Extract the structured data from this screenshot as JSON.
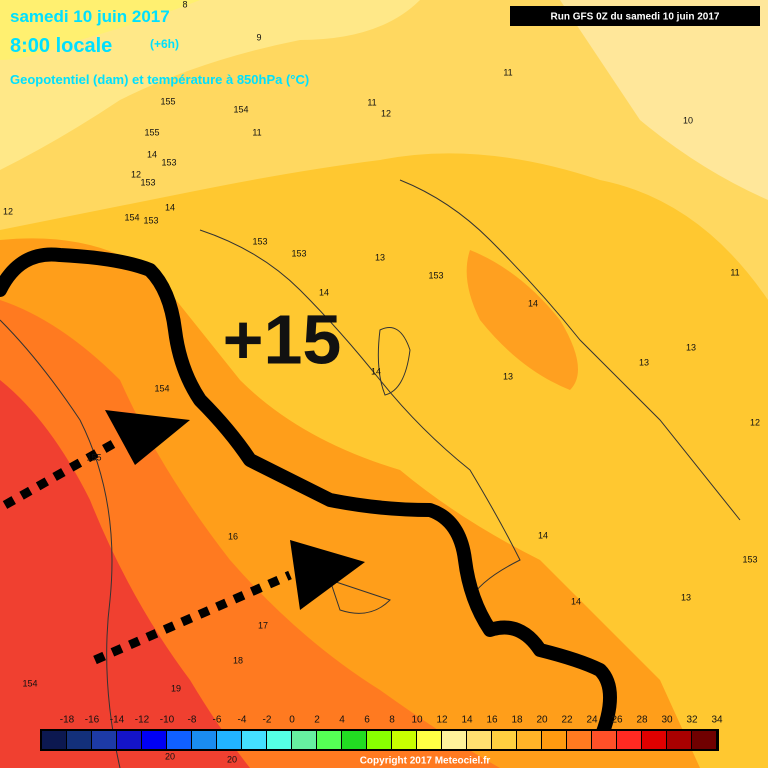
{
  "header": {
    "date": "samedi 10 juin 2017",
    "time": "8:00 locale",
    "offset": "(+6h)",
    "field": "Geopotentiel (dam) et température à 850hPa (°C)",
    "run": "Run GFS 0Z du samedi 10 juin 2017"
  },
  "annotation": "+15",
  "contour_labels": [
    "8",
    "9",
    "155",
    "154",
    "155",
    "11",
    "14",
    "153",
    "12",
    "153",
    "12",
    "154",
    "14",
    "153",
    "153",
    "153",
    "13",
    "14",
    "153",
    "14",
    "14",
    "154",
    "155",
    "16",
    "14",
    "14",
    "17",
    "18",
    "19",
    "154",
    "13",
    "153",
    "13",
    "12",
    "11",
    "10",
    "11",
    "12",
    "11",
    "13",
    "13",
    "20",
    "20"
  ],
  "colorbar": {
    "labels": [
      "-18",
      "-16",
      "-14",
      "-12",
      "-10",
      "-8",
      "-6",
      "-4",
      "-2",
      "0",
      "2",
      "4",
      "6",
      "8",
      "10",
      "12",
      "14",
      "16",
      "18",
      "20",
      "22",
      "24",
      "26",
      "28",
      "30",
      "32",
      "34"
    ],
    "colors": [
      "#0c1850",
      "#13307a",
      "#1d3aa6",
      "#1414c8",
      "#0000f5",
      "#1060ff",
      "#1a8cf0",
      "#22b4ff",
      "#44e0ff",
      "#55ffe4",
      "#66f0a0",
      "#55ff55",
      "#22dd22",
      "#88ff00",
      "#c8ff00",
      "#ffff44",
      "#fff39a",
      "#ffe070",
      "#ffd040",
      "#ffb428",
      "#ff9a10",
      "#ff7a20",
      "#ff5028",
      "#ff2a22",
      "#e00000",
      "#a80000",
      "#700000"
    ]
  },
  "copyright": "Copyright 2017 Meteociel.fr"
}
